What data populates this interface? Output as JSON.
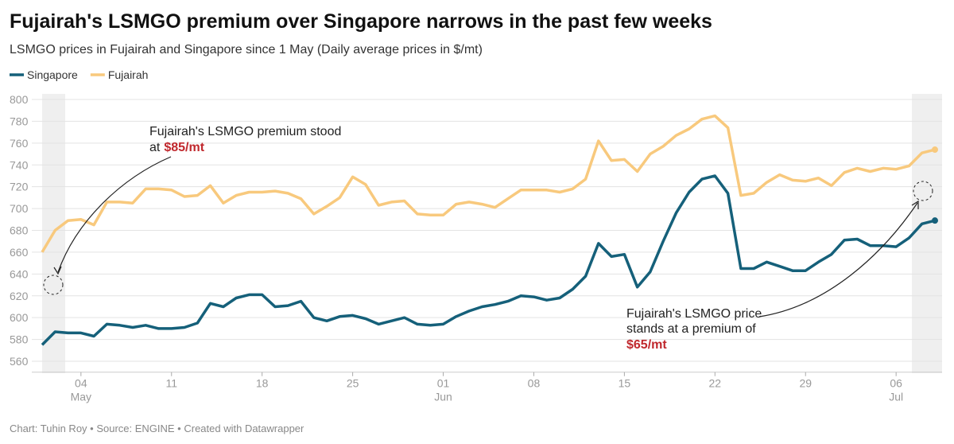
{
  "chart_data": {
    "type": "line",
    "title": "Fujairah's LSMGO premium over Singapore narrows in the past few weeks",
    "subtitle": "LSMGO prices in Fujairah and Singapore since 1 May (Daily average prices in $/mt)",
    "footer": "Chart: Tuhin Roy • Source: ENGINE • Created with Datawrapper",
    "x": [
      "05-01",
      "05-02",
      "05-03",
      "05-04",
      "05-05",
      "05-06",
      "05-07",
      "05-08",
      "05-09",
      "05-10",
      "05-11",
      "05-12",
      "05-13",
      "05-14",
      "05-15",
      "05-16",
      "05-17",
      "05-18",
      "05-19",
      "05-20",
      "05-21",
      "05-22",
      "05-23",
      "05-24",
      "05-25",
      "05-26",
      "05-27",
      "05-28",
      "05-29",
      "05-30",
      "05-31",
      "06-01",
      "06-02",
      "06-03",
      "06-04",
      "06-05",
      "06-06",
      "06-07",
      "06-08",
      "06-09",
      "06-10",
      "06-11",
      "06-12",
      "06-13",
      "06-14",
      "06-15",
      "06-16",
      "06-17",
      "06-18",
      "06-19",
      "06-20",
      "06-21",
      "06-22",
      "06-23",
      "06-24",
      "06-25",
      "06-26",
      "06-27",
      "06-28",
      "06-29",
      "06-30",
      "07-01",
      "07-02",
      "07-03",
      "07-04",
      "07-05",
      "07-06",
      "07-07",
      "07-08",
      "07-09"
    ],
    "series": [
      {
        "name": "Singapore",
        "color": "#15607a",
        "values": [
          575,
          587,
          586,
          586,
          583,
          594,
          593,
          591,
          593,
          590,
          590,
          591,
          595,
          613,
          610,
          618,
          621,
          621,
          610,
          611,
          615,
          600,
          597,
          601,
          602,
          599,
          594,
          597,
          600,
          594,
          593,
          594,
          601,
          606,
          610,
          612,
          615,
          620,
          619,
          616,
          618,
          626,
          638,
          668,
          656,
          658,
          628,
          642,
          670,
          696,
          715,
          727,
          730,
          714,
          645,
          645,
          651,
          647,
          643,
          643,
          651,
          658,
          671,
          672,
          666,
          666,
          665,
          673,
          686,
          689
        ]
      },
      {
        "name": "Fujairah",
        "color": "#f8c97d",
        "values": [
          660,
          680,
          689,
          690,
          685,
          706,
          706,
          705,
          718,
          718,
          717,
          711,
          712,
          721,
          705,
          712,
          715,
          715,
          716,
          714,
          709,
          695,
          702,
          710,
          729,
          722,
          703,
          706,
          707,
          695,
          694,
          694,
          704,
          706,
          704,
          701,
          709,
          717,
          717,
          717,
          715,
          718,
          727,
          762,
          744,
          745,
          734,
          750,
          757,
          767,
          773,
          782,
          785,
          774,
          712,
          714,
          724,
          731,
          726,
          725,
          728,
          721,
          733,
          737,
          734,
          737,
          736,
          739,
          751,
          754
        ]
      }
    ],
    "ylim": [
      550,
      800
    ],
    "yticks": [
      560,
      580,
      600,
      620,
      640,
      660,
      680,
      700,
      720,
      740,
      760,
      780,
      800
    ],
    "xticks": [
      {
        "value": "05-04",
        "label": "04",
        "sublabel": "May"
      },
      {
        "value": "05-11",
        "label": "11"
      },
      {
        "value": "05-18",
        "label": "18"
      },
      {
        "value": "05-25",
        "label": "25"
      },
      {
        "value": "06-01",
        "label": "01",
        "sublabel": "Jun"
      },
      {
        "value": "06-08",
        "label": "08"
      },
      {
        "value": "06-15",
        "label": "15"
      },
      {
        "value": "06-22",
        "label": "22"
      },
      {
        "value": "06-29",
        "label": "29"
      },
      {
        "value": "07-06",
        "label": "06",
        "sublabel": "Jul"
      }
    ],
    "grid": true,
    "annotations": [
      {
        "lines": [
          "Fujairah's LSMGO premium stood",
          "at"
        ],
        "highlight": "$85/mt"
      },
      {
        "lines": [
          "Fujairah's LSMGO price",
          "stands at a premium of"
        ],
        "highlight": "$65/mt"
      }
    ]
  }
}
